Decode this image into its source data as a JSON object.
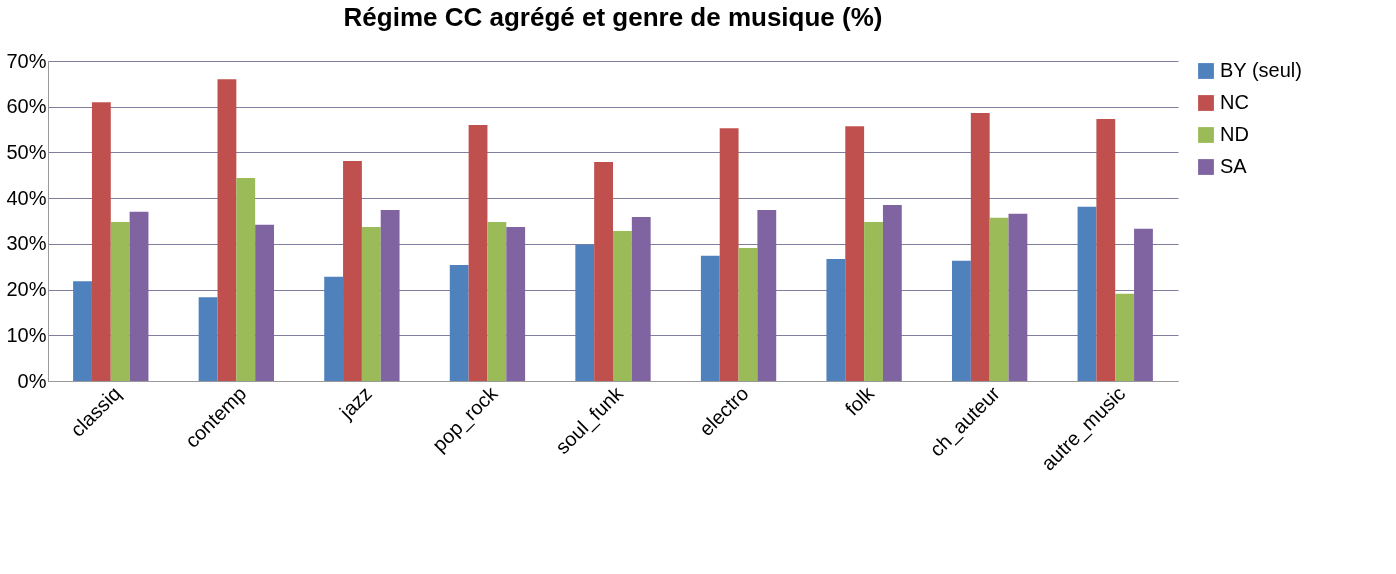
{
  "chart_data": {
    "type": "bar",
    "title": "Régime CC agrégé et genre de musique (%)",
    "categories": [
      "classiq",
      "contemp",
      "jazz",
      "pop_rock",
      "soul_funk",
      "electro",
      "folk",
      "ch_auteur",
      "autre_music"
    ],
    "series": [
      {
        "name": "BY (seul)",
        "color": "#4f81bd",
        "values": [
          21.8,
          18.3,
          22.8,
          25.4,
          29.8,
          27.4,
          26.7,
          26.3,
          38.1
        ]
      },
      {
        "name": "NC",
        "color": "#c0504d",
        "values": [
          61.0,
          66.0,
          48.1,
          56.0,
          47.9,
          55.3,
          55.7,
          58.6,
          57.3
        ]
      },
      {
        "name": "ND",
        "color": "#9bbb59",
        "values": [
          34.8,
          44.4,
          33.7,
          34.8,
          32.8,
          29.1,
          34.8,
          35.7,
          19.1
        ]
      },
      {
        "name": "SA",
        "color": "#8064a2",
        "values": [
          37.0,
          34.2,
          37.4,
          33.7,
          35.9,
          37.4,
          38.5,
          36.6,
          33.3
        ]
      }
    ],
    "ylim": [
      0,
      70
    ],
    "yticks": [
      {
        "value": 0,
        "label": "0%"
      },
      {
        "value": 10,
        "label": "10%"
      },
      {
        "value": 20,
        "label": "20%"
      },
      {
        "value": 30,
        "label": "30%"
      },
      {
        "value": 40,
        "label": "40%"
      },
      {
        "value": 50,
        "label": "50%"
      },
      {
        "value": 60,
        "label": "60%"
      },
      {
        "value": 70,
        "label": "70%"
      }
    ],
    "grid": "y",
    "legend": "right"
  }
}
